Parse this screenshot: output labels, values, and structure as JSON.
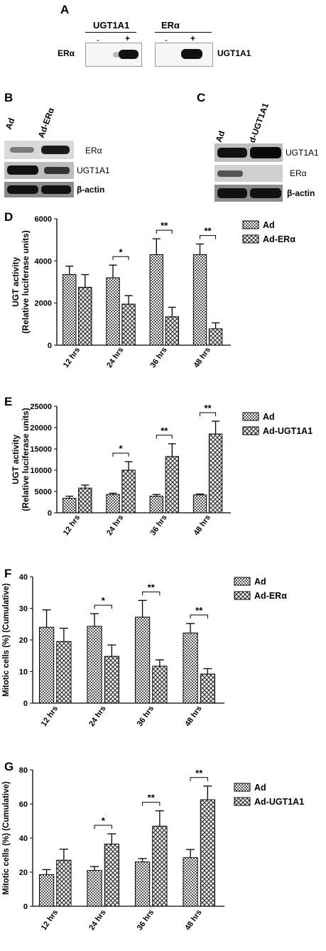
{
  "panels": {
    "A": "A",
    "B": "B",
    "C": "C",
    "D": "D",
    "E": "E",
    "F": "F",
    "G": "G"
  },
  "blotA": {
    "left_header": "UGT1A1",
    "right_header": "ERα",
    "left_minus": "-",
    "left_plus": "+",
    "right_minus": "-",
    "right_plus": "+",
    "left_row": "ERα",
    "right_row": "UGT1A1"
  },
  "blotB": {
    "col1": "Ad",
    "col2": "Ad-ERα",
    "rows": [
      "ERα",
      "UGT1A1",
      "β-actin"
    ]
  },
  "blotC": {
    "col1": "Ad",
    "col2": "Ad-UGT1A1",
    "rows": [
      "UGT1A1",
      "ERα",
      "β-actin"
    ]
  },
  "chart_data": [
    {
      "type": "bar",
      "panel": "D",
      "categories": [
        "12 hrs",
        "24 hrs",
        "36 hrs",
        "48 hrs"
      ],
      "ylabel_line1": "UGT activity",
      "ylabel_line2": "(Relative luciferase units)",
      "ylim": [
        0,
        6000
      ],
      "yticks": [
        0,
        2000,
        4000,
        6000
      ],
      "series": [
        {
          "name": "Ad",
          "values": [
            3350,
            3200,
            4300,
            4300
          ],
          "errors": [
            400,
            600,
            750,
            500
          ]
        },
        {
          "name": "Ad-ERα",
          "values": [
            2750,
            1950,
            1350,
            780
          ],
          "errors": [
            600,
            400,
            450,
            280
          ]
        }
      ],
      "significance": [
        "",
        "*",
        "**",
        "**"
      ]
    },
    {
      "type": "bar",
      "panel": "E",
      "categories": [
        "12 hrs",
        "24 hrs",
        "36 hrs",
        "48 hrs"
      ],
      "ylabel_line1": "UGT activity",
      "ylabel_line2": "(Relative luciferase units)",
      "ylim": [
        0,
        25000
      ],
      "yticks": [
        0,
        5000,
        10000,
        15000,
        20000,
        25000
      ],
      "series": [
        {
          "name": "Ad",
          "values": [
            3400,
            4300,
            3900,
            4200
          ],
          "errors": [
            500,
            300,
            400,
            200
          ]
        },
        {
          "name": "Ad-UGT1A1",
          "values": [
            5800,
            10000,
            13200,
            18500
          ],
          "errors": [
            700,
            2000,
            3000,
            3000
          ]
        }
      ],
      "significance": [
        "",
        "*",
        "**",
        "**"
      ]
    },
    {
      "type": "bar",
      "panel": "F",
      "categories": [
        "12 hrs",
        "24 hrs",
        "36 hrs",
        "48 hrs"
      ],
      "ylabel_line1": "Mitotic cells (%) (Cumulative)",
      "ylabel_line2": "",
      "ylim": [
        0,
        40
      ],
      "yticks": [
        0,
        10,
        20,
        30,
        40
      ],
      "series": [
        {
          "name": "Ad",
          "values": [
            24,
            24.3,
            27.2,
            22.2
          ],
          "errors": [
            5.5,
            4,
            5.3,
            3
          ]
        },
        {
          "name": "Ad-ERα",
          "values": [
            19.5,
            14.8,
            11.7,
            9.2
          ],
          "errors": [
            4.2,
            3.6,
            2,
            1.7
          ]
        }
      ],
      "significance": [
        "",
        "*",
        "**",
        "**"
      ]
    },
    {
      "type": "bar",
      "panel": "G",
      "categories": [
        "12 hrs",
        "24 hrs",
        "36 hrs",
        "48 hrs"
      ],
      "ylabel_line1": "Mitotic cells (%) (Cumulative)",
      "ylabel_line2": "",
      "ylim": [
        0,
        80
      ],
      "yticks": [
        0,
        20,
        40,
        60,
        80
      ],
      "series": [
        {
          "name": "Ad",
          "values": [
            18.5,
            21,
            26,
            28.5
          ],
          "errors": [
            3,
            2.3,
            2,
            4.8
          ]
        },
        {
          "name": "Ad-UGT1A1",
          "values": [
            27,
            36.5,
            47,
            62.5
          ],
          "errors": [
            6.5,
            6,
            9,
            8
          ]
        }
      ],
      "significance": [
        "",
        "*",
        "**",
        "**"
      ]
    }
  ]
}
